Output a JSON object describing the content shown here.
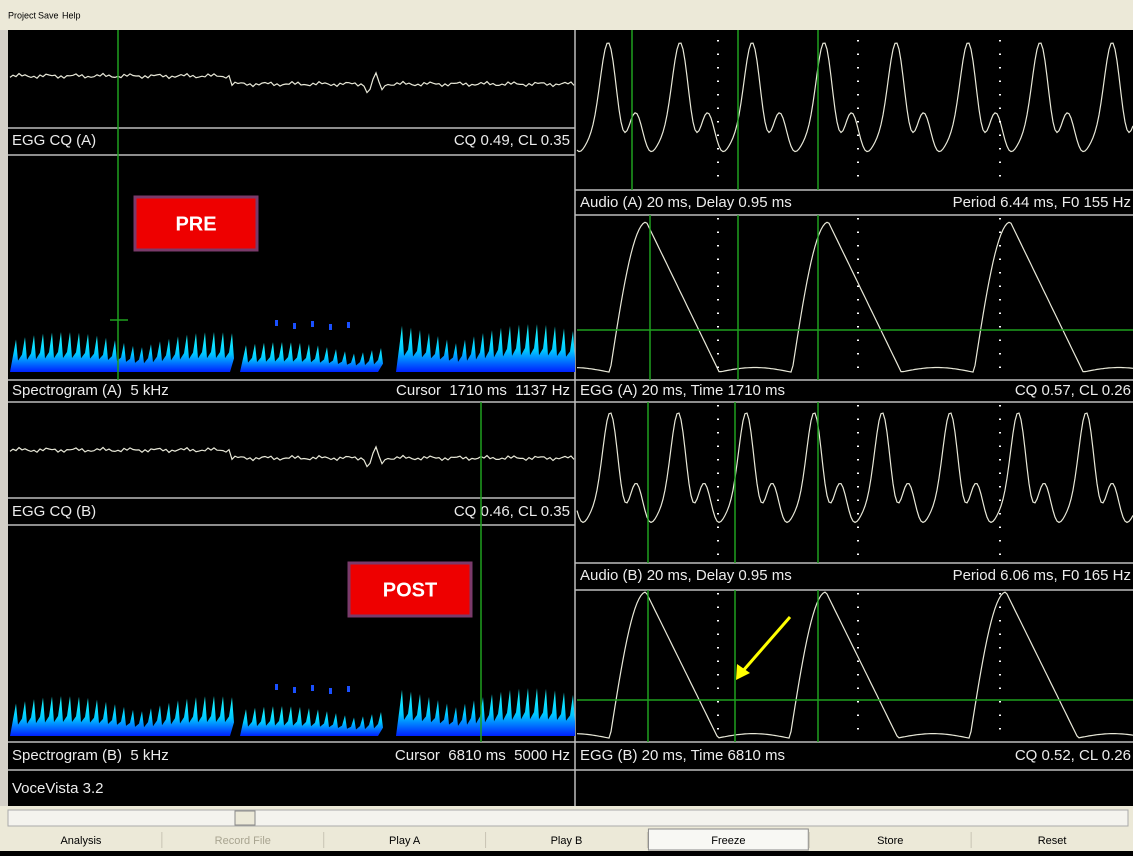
{
  "menu": [
    "Project",
    "Save",
    "Help"
  ],
  "left": [
    {
      "label": "EGG CQ (A)",
      "info": "CQ 0.49, CL 0.35"
    },
    {
      "label": "Spectrogram (A)  5 kHz",
      "info": "Cursor  1710 ms  1137 Hz"
    },
    {
      "label": "EGG CQ (B)",
      "info": "CQ 0.46, CL 0.35"
    },
    {
      "label": "Spectrogram (B)  5 kHz",
      "info": "Cursor  6810 ms  5000 Hz"
    }
  ],
  "right": [
    {
      "label": "Audio (A) 20 ms, Delay 0.95 ms",
      "info": "Period 6.44 ms, F0 155 Hz"
    },
    {
      "label": "EGG (A) 20 ms, Time 1710 ms",
      "info": "CQ 0.57, CL 0.26"
    },
    {
      "label": "Audio (B) 20 ms, Delay 0.95 ms",
      "info": "Period 6.06 ms, F0 165 Hz"
    },
    {
      "label": "EGG (B) 20 ms, Time 6810 ms",
      "info": "CQ 0.52, CL 0.26"
    }
  ],
  "tags": [
    "PRE",
    "POST"
  ],
  "status": "VoceVista 3.2",
  "buttons": [
    "Analysis",
    "Record File",
    "Play A",
    "Play B",
    "Freeze",
    "Store",
    "Reset"
  ]
}
